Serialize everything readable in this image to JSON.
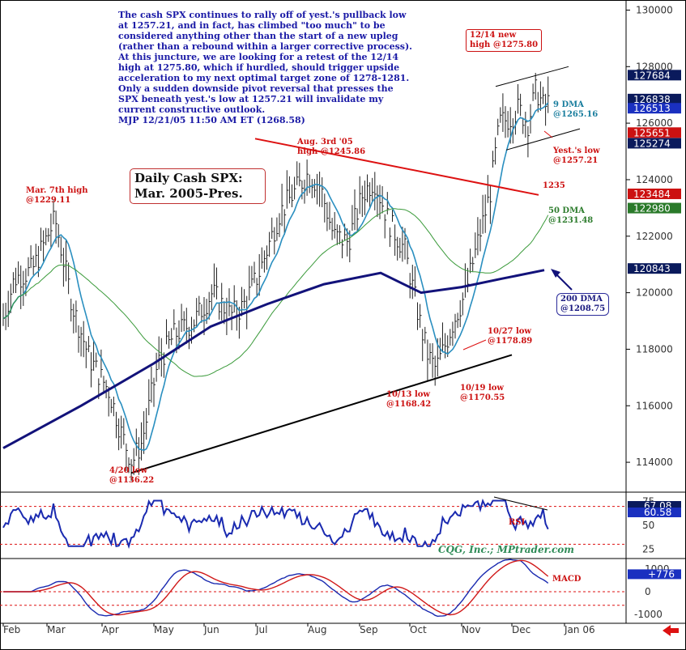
{
  "note": [
    "The cash SPX continues to rally off of yest.'s pullback low",
    "at 1257.21, and in fact, has climbed \"too much\" to be",
    "considered anything other than the start of a new upleg",
    "(rather than a rebound within a larger corrective process).",
    "At this juncture, we are looking for a retest of the 12/14",
    "high at 1275.80, which if hurdled, should trigger upside",
    "acceleration to my next optimal target zone of 1278-1281.",
    "Only a sudden downside pivot reversal that presses the",
    "SPX beneath yest.'s low at 1257.21 will invalidate my",
    "current constructive outlook.",
    "MJP 12/21/05 11:50 AM ET (1268.58)"
  ],
  "title_box": [
    "Daily Cash SPX:",
    "Mar. 2005-Pres."
  ],
  "annotations": {
    "mar7": [
      "Mar. 7th high",
      "@1229.11"
    ],
    "aug3": [
      "Aug. 3rd '05",
      "high @1245.86"
    ],
    "dec14": [
      "12/14 new",
      "high @1275.80"
    ],
    "dma9": [
      "9 DMA",
      "@1265.16"
    ],
    "yest_low": [
      "Yest.'s low",
      "@1257.21"
    ],
    "line1235": "1235",
    "dma50": [
      "50 DMA",
      "@1231.48"
    ],
    "dma200": [
      "200 DMA",
      "@1208.75"
    ],
    "oct27": [
      "10/27 low",
      "@1178.89"
    ],
    "oct19": [
      "10/19 low",
      "@1170.55"
    ],
    "oct13": [
      "10/13 low",
      "@1168.42"
    ],
    "apr20": [
      "4/20 low",
      "@1136.22"
    ],
    "rsi": "RSI",
    "macd": "MACD"
  },
  "credit": "CQG, Inc.; MPtrader.com",
  "colors": {
    "price_bars": "#222222",
    "dma9": "#2a8fc0",
    "dma50": "#3a9a3a",
    "dma200": "#12127a",
    "trend_red": "#dd1111",
    "indicator_blue": "#1a2ab0",
    "macd_signal": "#d01818",
    "price_tag_navy": "#0a1a5c",
    "price_tag_red": "#cc1111",
    "price_tag_green": "#2a7a2a"
  },
  "chart_data": {
    "type": "line",
    "title": "Daily Cash SPX: Mar. 2005-Pres.",
    "x_axis": {
      "labels": [
        "Feb",
        "Mar",
        "Apr",
        "May",
        "Jun",
        "Jul",
        "Aug",
        "Sep",
        "Oct",
        "Nov",
        "Dec",
        "Jan 06"
      ]
    },
    "price_panel": {
      "y_ticks": [
        114000,
        116000,
        118000,
        120000,
        122000,
        124000,
        126000,
        128000,
        130000
      ],
      "ylim": [
        113000,
        130300
      ],
      "price_tags": [
        {
          "value": 127684,
          "label": "127684",
          "color": "navy"
        },
        {
          "value": 126838,
          "label": "126838",
          "color": "navy"
        },
        {
          "value": 126513,
          "label": "126513",
          "color": "blue"
        },
        {
          "value": 125651,
          "label": "125651",
          "color": "red"
        },
        {
          "value": 125274,
          "label": "125274",
          "color": "navy"
        },
        {
          "value": 123484,
          "label": "123484",
          "color": "red"
        },
        {
          "value": 122980,
          "label": "122980",
          "color": "green"
        },
        {
          "value": 120843,
          "label": "120843",
          "color": "navy"
        }
      ],
      "close_series": [
        {
          "x": "Feb",
          "y": 1190
        },
        {
          "x": "Mar 7",
          "y": 1229
        },
        {
          "x": "Apr 20",
          "y": 1136
        },
        {
          "x": "May",
          "y": 1173
        },
        {
          "x": "Jun",
          "y": 1197
        },
        {
          "x": "Jul",
          "y": 1210
        },
        {
          "x": "Aug 3",
          "y": 1246
        },
        {
          "x": "Sep",
          "y": 1230
        },
        {
          "x": "Oct 13",
          "y": 1168
        },
        {
          "x": "Oct 19",
          "y": 1171
        },
        {
          "x": "Oct 27",
          "y": 1179
        },
        {
          "x": "Nov",
          "y": 1225
        },
        {
          "x": "Dec 14",
          "y": 1276
        },
        {
          "x": "Dec 21",
          "y": 1268.58
        }
      ]
    },
    "rsi_panel": {
      "y_ticks": [
        25,
        50,
        75
      ],
      "levels": [
        30,
        70
      ],
      "tags": [
        {
          "value": "67.08",
          "color": "navy"
        },
        {
          "value": "60.58",
          "color": "blue"
        }
      ]
    },
    "macd_panel": {
      "y_ticks": [
        -1000,
        0,
        1000
      ],
      "tags": [
        {
          "value": "+776",
          "color": "blue"
        }
      ]
    }
  }
}
